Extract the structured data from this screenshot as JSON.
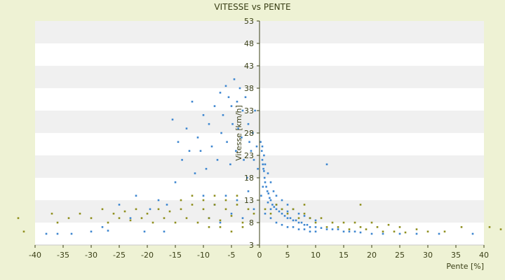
{
  "chart_data": {
    "type": "scatter",
    "title": "VITESSE vs PENTE",
    "xlabel": "Pente [%]",
    "ylabel": "Vitesse [km/h]",
    "xlim": [
      -40,
      40
    ],
    "ylim": [
      3,
      53
    ],
    "x_ticks": [
      -40,
      -35,
      -30,
      -25,
      -20,
      -15,
      -10,
      -5,
      0,
      5,
      10,
      15,
      20,
      25,
      30,
      35,
      40
    ],
    "y_ticks": [
      3,
      8,
      13,
      18,
      23,
      28,
      33,
      38,
      43,
      48,
      53
    ],
    "grid": "horizontal alternating bands",
    "legend": "none",
    "colors": {
      "background": "#eef2d4",
      "plot_band_a": "#ffffff",
      "plot_band_b": "#f0f0f0",
      "series_blue": "#3d86d0",
      "series_olive": "#8f8f1e",
      "axis": "#3a3f16"
    },
    "series": [
      {
        "color": "#3d86d0",
        "points": [
          [
            -38,
            5.5
          ],
          [
            -36,
            5.5
          ],
          [
            -33.5,
            5.5
          ],
          [
            -30,
            6
          ],
          [
            -28,
            7
          ],
          [
            -27,
            6.2
          ],
          [
            -25,
            12
          ],
          [
            -23,
            9
          ],
          [
            -22,
            14
          ],
          [
            -20.5,
            6
          ],
          [
            -19.5,
            11
          ],
          [
            -18,
            13
          ],
          [
            -17,
            6
          ],
          [
            -16.5,
            12
          ],
          [
            -15.5,
            31
          ],
          [
            -15,
            17
          ],
          [
            -14.5,
            26
          ],
          [
            -13.8,
            22
          ],
          [
            -13,
            29
          ],
          [
            -12.5,
            24
          ],
          [
            -12,
            35
          ],
          [
            -11.5,
            19
          ],
          [
            -11,
            27
          ],
          [
            -10.5,
            24
          ],
          [
            -10,
            32
          ],
          [
            -9.5,
            20
          ],
          [
            -9,
            30
          ],
          [
            -8.5,
            25
          ],
          [
            -8,
            34
          ],
          [
            -7.5,
            22
          ],
          [
            -7,
            37
          ],
          [
            -6.8,
            28
          ],
          [
            -6.5,
            32
          ],
          [
            -6,
            38.5
          ],
          [
            -5.8,
            26
          ],
          [
            -5.5,
            36
          ],
          [
            -5.2,
            21
          ],
          [
            -5,
            34
          ],
          [
            -4.8,
            30
          ],
          [
            -4.5,
            40
          ],
          [
            -4.2,
            24
          ],
          [
            -4,
            35
          ],
          [
            -3.8,
            29
          ],
          [
            -3.5,
            38
          ],
          [
            -3.2,
            27
          ],
          [
            -3,
            33
          ],
          [
            -2.8,
            22
          ],
          [
            -2.5,
            36
          ],
          [
            -2.2,
            18
          ],
          [
            -2,
            30
          ],
          [
            -1.8,
            26
          ],
          [
            -1.5,
            24
          ],
          [
            -1.2,
            28
          ],
          [
            -1,
            22
          ],
          [
            -0.8,
            33
          ],
          [
            -0.5,
            25
          ],
          [
            -0.3,
            20
          ],
          [
            -10,
            14
          ],
          [
            -8,
            12
          ],
          [
            -6,
            14
          ],
          [
            -4,
            13
          ],
          [
            -2,
            15
          ],
          [
            -9,
            9
          ],
          [
            -7,
            8
          ],
          [
            -5,
            10
          ],
          [
            -3,
            9
          ],
          [
            -1,
            11
          ],
          [
            0.2,
            26
          ],
          [
            0.4,
            24
          ],
          [
            0.5,
            22
          ],
          [
            0.6,
            21
          ],
          [
            0.7,
            20
          ],
          [
            0.8,
            19.5
          ],
          [
            0.9,
            18
          ],
          [
            1,
            17
          ],
          [
            1.2,
            16
          ],
          [
            1.4,
            15
          ],
          [
            1.6,
            14.5
          ],
          [
            1.8,
            13.5
          ],
          [
            2,
            13
          ],
          [
            2.3,
            12
          ],
          [
            2.6,
            11.5
          ],
          [
            3,
            11
          ],
          [
            3.5,
            10.5
          ],
          [
            4,
            10
          ],
          [
            4.5,
            9.5
          ],
          [
            5,
            9
          ],
          [
            5.5,
            9
          ],
          [
            6,
            8.5
          ],
          [
            6.5,
            8.5
          ],
          [
            7,
            8
          ],
          [
            7.5,
            8
          ],
          [
            8,
            7.5
          ],
          [
            8.5,
            7.5
          ],
          [
            9,
            7
          ],
          [
            10,
            7
          ],
          [
            11,
            6.8
          ],
          [
            12,
            6.5
          ],
          [
            13,
            6.5
          ],
          [
            14,
            6.5
          ],
          [
            15,
            6
          ],
          [
            16,
            6
          ],
          [
            17,
            6
          ],
          [
            18,
            5.8
          ],
          [
            20,
            5.5
          ],
          [
            22,
            5.5
          ],
          [
            25,
            5.5
          ],
          [
            28,
            5.5
          ],
          [
            32,
            5.5
          ],
          [
            38,
            5.5
          ],
          [
            12,
            21
          ],
          [
            0.5,
            25
          ],
          [
            0.8,
            23
          ],
          [
            1,
            21
          ],
          [
            1.5,
            19
          ],
          [
            2,
            17
          ],
          [
            2.5,
            15
          ],
          [
            3,
            14
          ],
          [
            4,
            13
          ],
          [
            5,
            12
          ],
          [
            6,
            11
          ],
          [
            7,
            10
          ],
          [
            8,
            9.5
          ],
          [
            9,
            9
          ],
          [
            10,
            8.5
          ],
          [
            1,
            10
          ],
          [
            2,
            9
          ],
          [
            3,
            8
          ],
          [
            4,
            7.5
          ],
          [
            5,
            7
          ],
          [
            6,
            7
          ],
          [
            7,
            6.5
          ],
          [
            8,
            6.5
          ],
          [
            9,
            6
          ],
          [
            10,
            6
          ],
          [
            3,
            12
          ],
          [
            4,
            11
          ],
          [
            5,
            10.5
          ],
          [
            2,
            11
          ],
          [
            1.5,
            12.5
          ],
          [
            0.3,
            14
          ],
          [
            0.6,
            16
          ]
        ]
      },
      {
        "color": "#8f8f1e",
        "points": [
          [
            -43,
            9
          ],
          [
            -42,
            6
          ],
          [
            -37,
            10
          ],
          [
            -36,
            8
          ],
          [
            -34,
            9
          ],
          [
            -32,
            10
          ],
          [
            -30,
            9
          ],
          [
            -28,
            11
          ],
          [
            -27,
            8
          ],
          [
            -26,
            10
          ],
          [
            -25,
            9
          ],
          [
            -24,
            10.5
          ],
          [
            -23,
            8.5
          ],
          [
            -22,
            11
          ],
          [
            -21,
            9
          ],
          [
            -20,
            10
          ],
          [
            -19,
            8
          ],
          [
            -18,
            11
          ],
          [
            -17,
            9
          ],
          [
            -16,
            10.5
          ],
          [
            -15,
            8
          ],
          [
            -14,
            11
          ],
          [
            -13,
            9
          ],
          [
            -12,
            12
          ],
          [
            -11,
            8
          ],
          [
            -10,
            11
          ],
          [
            -9,
            9
          ],
          [
            -8,
            12
          ],
          [
            -7,
            8.5
          ],
          [
            -6,
            11
          ],
          [
            -5,
            9.5
          ],
          [
            -4,
            12
          ],
          [
            -3,
            8
          ],
          [
            -2,
            11
          ],
          [
            -1,
            10
          ],
          [
            -14,
            13
          ],
          [
            -12,
            14
          ],
          [
            -10,
            13
          ],
          [
            -8,
            14
          ],
          [
            -6,
            13
          ],
          [
            -4,
            14
          ],
          [
            -9,
            7
          ],
          [
            -7,
            7
          ],
          [
            -5,
            6
          ],
          [
            -3,
            7
          ],
          [
            1,
            11
          ],
          [
            2,
            10
          ],
          [
            3,
            12
          ],
          [
            4,
            11
          ],
          [
            5,
            10
          ],
          [
            6,
            11
          ],
          [
            7,
            9
          ],
          [
            8,
            10
          ],
          [
            9,
            9
          ],
          [
            10,
            8
          ],
          [
            11,
            9
          ],
          [
            12,
            7
          ],
          [
            13,
            8
          ],
          [
            14,
            7
          ],
          [
            15,
            8
          ],
          [
            16,
            6.5
          ],
          [
            17,
            8
          ],
          [
            18,
            7
          ],
          [
            19,
            6.5
          ],
          [
            20,
            8
          ],
          [
            21,
            7
          ],
          [
            22,
            6
          ],
          [
            23,
            7.5
          ],
          [
            24,
            6
          ],
          [
            25,
            7
          ],
          [
            26,
            5.8
          ],
          [
            28,
            6.5
          ],
          [
            30,
            6
          ],
          [
            33,
            6
          ],
          [
            36,
            7
          ],
          [
            41,
            7
          ],
          [
            43,
            6.5
          ],
          [
            8,
            12
          ],
          [
            18,
            12
          ]
        ]
      }
    ]
  }
}
